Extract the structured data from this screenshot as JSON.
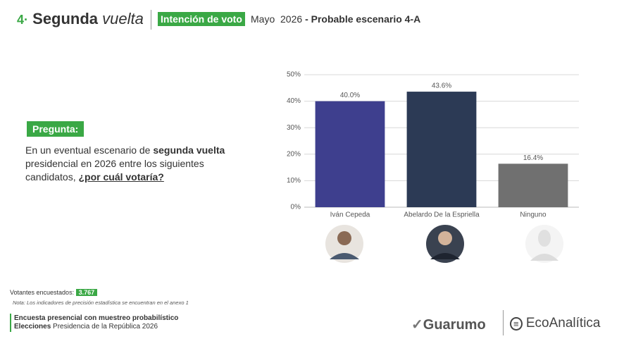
{
  "header": {
    "number": "4·",
    "title": "Segunda",
    "title_italic": "vuelta",
    "tag": "Intención de voto",
    "date": "Mayo  2026",
    "scenario": "- Probable escenario 4-A"
  },
  "question": {
    "label": "Pregunta:",
    "parts": [
      "En un eventual escenario de ",
      "segunda vuelta",
      " presidencial en 2026 entre los siguientes candidatos, ",
      "¿por cuál votaría?"
    ]
  },
  "footer": {
    "sample_label": "Votantes encuestados:",
    "sample_value": "3.767",
    "note": "Nota: Los indicadores de precisión estadística se encuentran en el anexo 1",
    "method": "Encuesta presencial con muestreo probabilístico",
    "election_bold": "Elecciones",
    "election": "Presidencia de la República 2026",
    "logo1": "Guarumo",
    "logo2": "EcoAnalítica"
  },
  "chart_data": {
    "type": "bar",
    "categories": [
      "Iván Cepeda",
      "Abelardo De la Espriella",
      "Ninguno"
    ],
    "values": [
      40.0,
      43.6,
      16.4
    ],
    "value_labels": [
      "40.0%",
      "43.6%",
      "16.4%"
    ],
    "colors": [
      "#3e3f8e",
      "#2c3a55",
      "#707070"
    ],
    "ylim": [
      0,
      50
    ],
    "yticks": [
      {
        "value": 0,
        "label": "0%"
      },
      {
        "value": 10,
        "label": "10%"
      },
      {
        "value": 20,
        "label": "20%"
      },
      {
        "value": 30,
        "label": "30%"
      },
      {
        "value": 40,
        "label": "40%"
      },
      {
        "value": 50,
        "label": "50%"
      }
    ],
    "grid": true
  }
}
